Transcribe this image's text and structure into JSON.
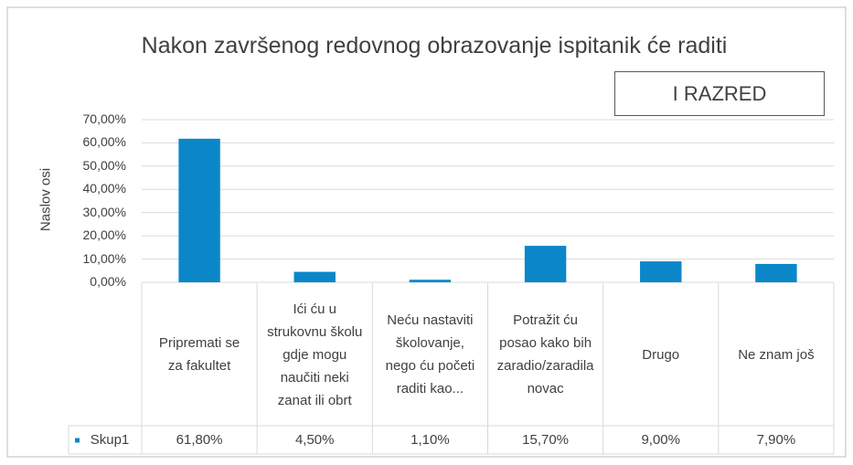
{
  "chart_data": {
    "type": "bar",
    "title": "Nakon završenog redovnog obrazovanje ispitanik će raditi",
    "annotation": "I RAZRED",
    "y_label": "Naslov osi",
    "categories": [
      "Pripremati se za fakultet",
      "Ići ću u strukovnu školu gdje mogu naučiti neki zanat ili obrt",
      "Neću nastaviti školovanje, nego ću početi raditi kao...",
      "Potražit ću posao kako bih zaradio/zaradila novac",
      "Drugo",
      "Ne znam još"
    ],
    "series": [
      {
        "name": "Skup1",
        "color": "#0b87c9",
        "values": [
          61.8,
          4.5,
          1.1,
          15.7,
          9.0,
          7.9
        ],
        "value_labels": [
          "61,80%",
          "4,50%",
          "1,10%",
          "15,70%",
          "9,00%",
          "7,90%"
        ]
      }
    ],
    "ylim": [
      0,
      70
    ],
    "yticks": [
      {
        "value": 0,
        "label": "0,00%"
      },
      {
        "value": 10,
        "label": "10,00%"
      },
      {
        "value": 20,
        "label": "20,00%"
      },
      {
        "value": 30,
        "label": "30,00%"
      },
      {
        "value": 40,
        "label": "40,00%"
      },
      {
        "value": 50,
        "label": "50,00%"
      },
      {
        "value": 60,
        "label": "60,00%"
      },
      {
        "value": 70,
        "label": "70,00%"
      }
    ],
    "grid": true
  }
}
